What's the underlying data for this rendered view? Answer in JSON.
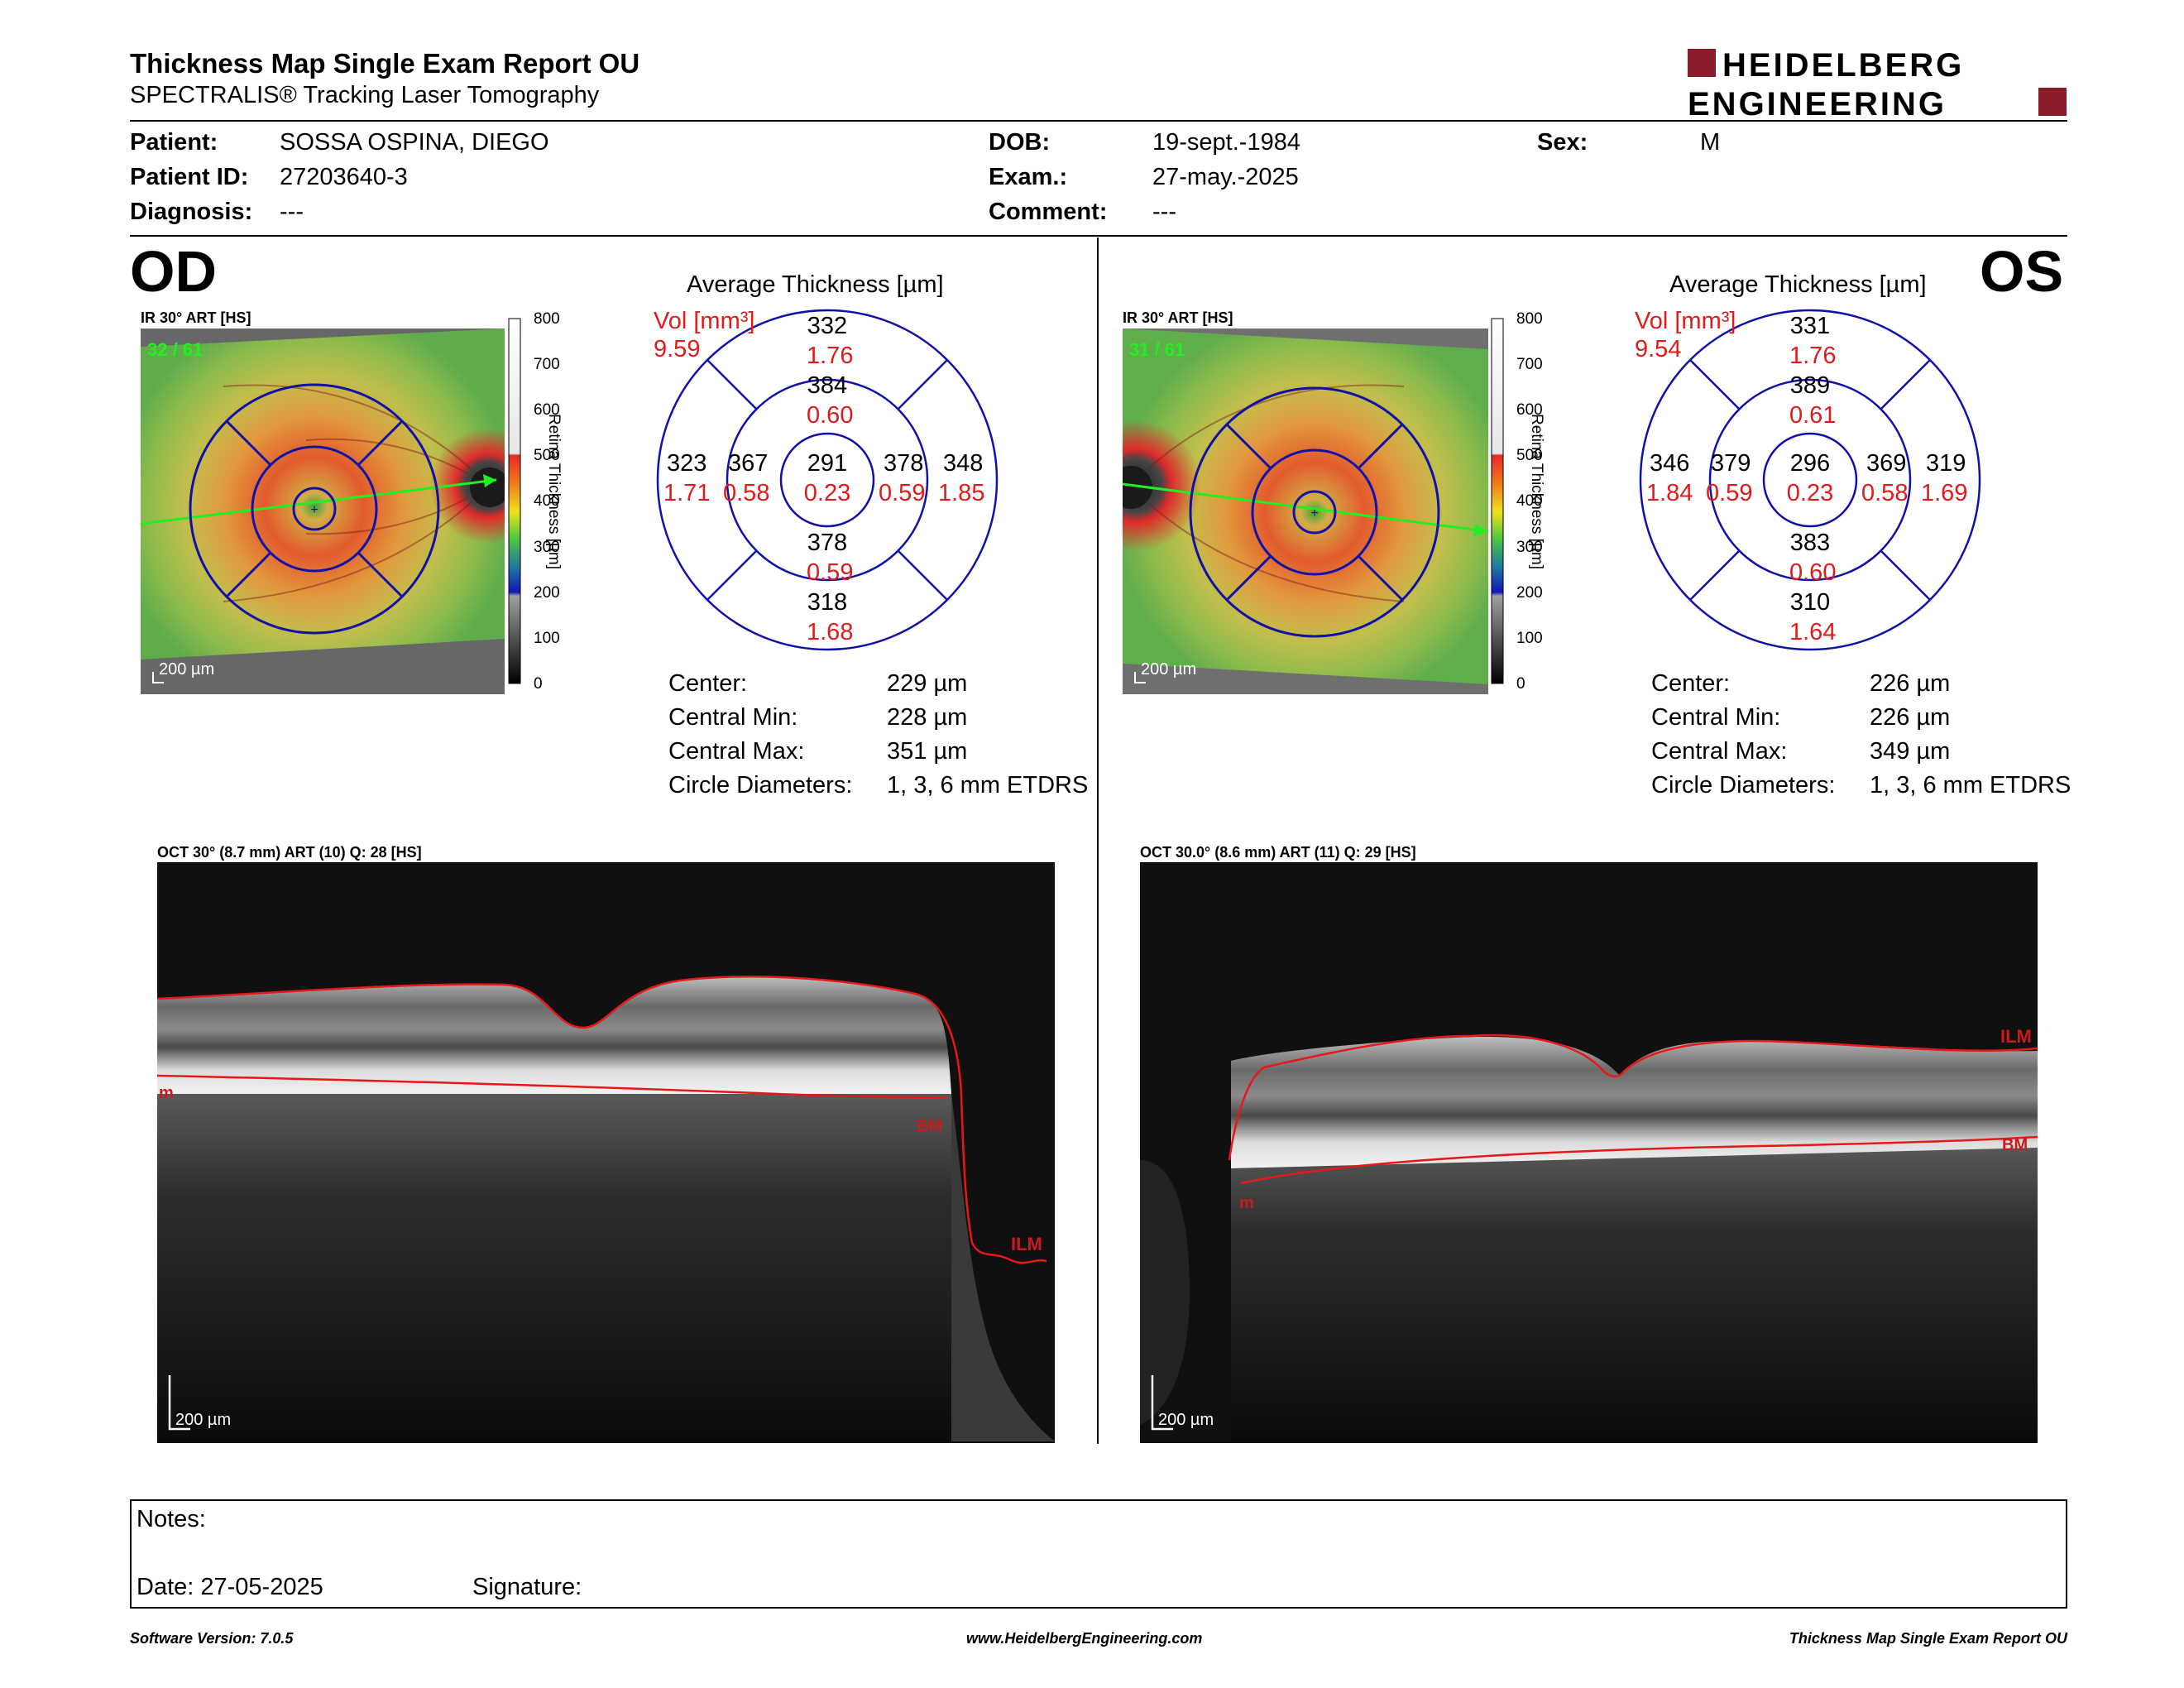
{
  "header": {
    "title": "Thickness Map Single Exam Report OU",
    "subtitle": "SPECTRALIS® Tracking Laser Tomography",
    "logo_line1": "HEIDELBERG",
    "logo_line2": "ENGINEERING",
    "brand_color": "#8b1a2b"
  },
  "patient": {
    "patient_label": "Patient:",
    "patient_value": "SOSSA OSPINA, DIEGO",
    "id_label": "Patient ID:",
    "id_value": "27203640-3",
    "diagnosis_label": "Diagnosis:",
    "diagnosis_value": "---",
    "dob_label": "DOB:",
    "dob_value": "19-sept.-1984",
    "exam_label": "Exam.:",
    "exam_value": "27-may.-2025",
    "comment_label": "Comment:",
    "comment_value": "---",
    "sex_label": "Sex:",
    "sex_value": "M"
  },
  "od": {
    "eye_label": "OD",
    "ir_label": "IR 30° ART [HS]",
    "ir_counter": "32 / 61",
    "scale_label": "200 µm",
    "colorbar_ticks": [
      "800",
      "700",
      "600",
      "500",
      "400",
      "300",
      "200",
      "100",
      "0"
    ],
    "colorbar_title": "Retina Thickness [µm]",
    "avg_title": "Average Thickness [µm]",
    "vol_label": "Vol [mm³]",
    "vol_value": "9.59",
    "sectors": {
      "center_t": "291",
      "center_v": "0.23",
      "inner_top_t": "384",
      "inner_top_v": "0.60",
      "inner_bottom_t": "378",
      "inner_bottom_v": "0.59",
      "inner_left_t": "367",
      "inner_left_v": "0.58",
      "inner_right_t": "378",
      "inner_right_v": "0.59",
      "outer_top_t": "332",
      "outer_top_v": "1.76",
      "outer_bottom_t": "318",
      "outer_bottom_v": "1.68",
      "outer_left_t": "323",
      "outer_left_v": "1.71",
      "outer_right_t": "348",
      "outer_right_v": "1.85"
    },
    "stats": [
      {
        "label": "Center:",
        "value": "229 µm"
      },
      {
        "label": "Central Min:",
        "value": "228 µm"
      },
      {
        "label": "Central Max:",
        "value": "351 µm"
      },
      {
        "label": "Circle Diameters:",
        "value": "1, 3, 6 mm ETDRS"
      }
    ],
    "oct_label": "OCT 30° (8.7 mm) ART (10) Q: 28 [HS]",
    "oct_scale": "200 µm",
    "oct_ilm": "ILM",
    "oct_bm": "BM",
    "oct_m": "m"
  },
  "os": {
    "eye_label": "OS",
    "ir_label": "IR 30° ART [HS]",
    "ir_counter": "31 / 61",
    "scale_label": "200 µm",
    "colorbar_ticks": [
      "800",
      "700",
      "600",
      "500",
      "400",
      "300",
      "200",
      "100",
      "0"
    ],
    "colorbar_title": "Retina Thickness [µm]",
    "avg_title": "Average Thickness [µm]",
    "vol_label": "Vol [mm³]",
    "vol_value": "9.54",
    "sectors": {
      "center_t": "296",
      "center_v": "0.23",
      "inner_top_t": "389",
      "inner_top_v": "0.61",
      "inner_bottom_t": "383",
      "inner_bottom_v": "0.60",
      "inner_left_t": "379",
      "inner_left_v": "0.59",
      "inner_right_t": "369",
      "inner_right_v": "0.58",
      "outer_top_t": "331",
      "outer_top_v": "1.76",
      "outer_bottom_t": "310",
      "outer_bottom_v": "1.64",
      "outer_left_t": "346",
      "outer_left_v": "1.84",
      "outer_right_t": "319",
      "outer_right_v": "1.69"
    },
    "stats": [
      {
        "label": "Center:",
        "value": "226 µm"
      },
      {
        "label": "Central Min:",
        "value": "226 µm"
      },
      {
        "label": "Central Max:",
        "value": "349 µm"
      },
      {
        "label": "Circle Diameters:",
        "value": "1, 3, 6 mm ETDRS"
      }
    ],
    "oct_label": "OCT 30.0° (8.6 mm) ART (11) Q: 29 [HS]",
    "oct_scale": "200 µm",
    "oct_ilm": "ILM",
    "oct_bm": "BM",
    "oct_m": "m"
  },
  "notes": {
    "notes_label": "Notes:",
    "date_label": "Date: 27-05-2025",
    "signature_label": "Signature:"
  },
  "footer": {
    "software": "Software Version: 7.0.5",
    "website": "www.HeidelbergEngineering.com",
    "report": "Thickness Map Single Exam Report OU"
  }
}
